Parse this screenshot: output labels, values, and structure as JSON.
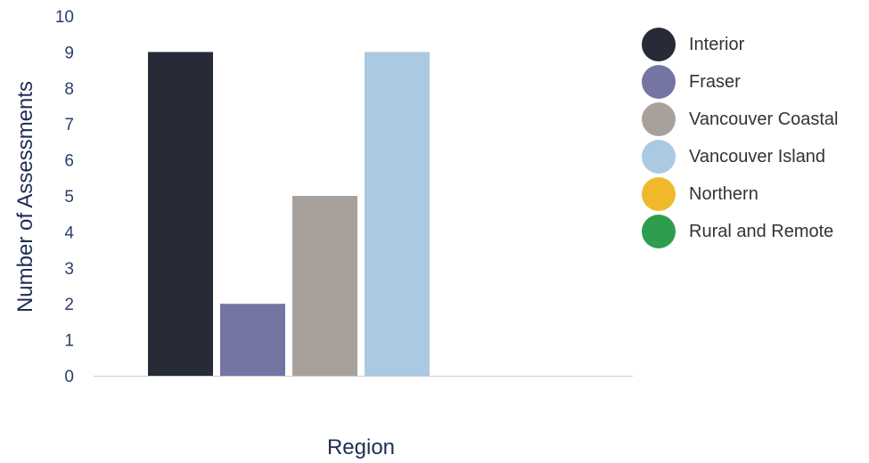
{
  "chart_data": {
    "type": "bar",
    "xlabel": "Region",
    "ylabel": "Number of Assessments",
    "ylim": [
      0,
      10
    ],
    "yticks": [
      0,
      1,
      2,
      3,
      4,
      5,
      6,
      7,
      8,
      9,
      10
    ],
    "grid": false,
    "legend_position": "right",
    "series": [
      {
        "name": "Interior",
        "value": 9,
        "color": "#262b37"
      },
      {
        "name": "Fraser",
        "value": 2,
        "color": "#7575a3"
      },
      {
        "name": "Vancouver Coastal",
        "value": 5,
        "color": "#a8a19b"
      },
      {
        "name": "Vancouver Island",
        "value": 9,
        "color": "#aac9e3"
      },
      {
        "name": "Northern",
        "value": 0,
        "color": "#f0b92b"
      },
      {
        "name": "Rural and Remote",
        "value": 0,
        "color": "#2e9d4e"
      }
    ]
  }
}
